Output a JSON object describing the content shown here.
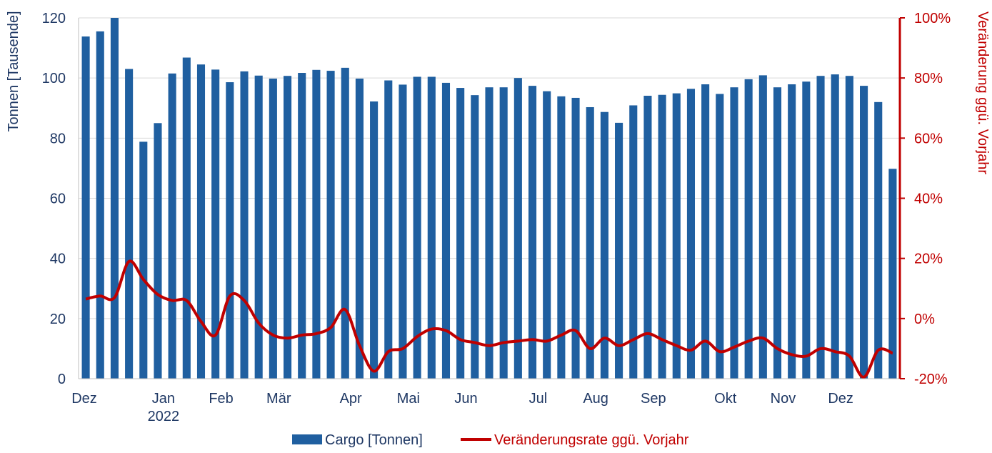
{
  "chart_data": {
    "type": "bar+line",
    "title": "",
    "y_left_label": "Tonnen [Tausende]",
    "y_right_label": "Veränderung ggü. Vorjahr",
    "y_left_ticks": [
      "0",
      "20",
      "40",
      "60",
      "80",
      "100",
      "120"
    ],
    "y_right_ticks": [
      "-20%",
      "0%",
      "20%",
      "40%",
      "60%",
      "80%",
      "100%"
    ],
    "ylim_left": [
      0,
      120
    ],
    "ylim_right": [
      -20,
      100
    ],
    "x_month_labels": [
      {
        "label": "Dez",
        "week": 0
      },
      {
        "label": "Jan",
        "week": 5
      },
      {
        "label": "2022",
        "week": 5,
        "second_line": true
      },
      {
        "label": "Feb",
        "week": 9
      },
      {
        "label": "Mär",
        "week": 13
      },
      {
        "label": "Apr",
        "week": 18
      },
      {
        "label": "Mai",
        "week": 22
      },
      {
        "label": "Jun",
        "week": 26
      },
      {
        "label": "Jul",
        "week": 31
      },
      {
        "label": "Aug",
        "week": 35
      },
      {
        "label": "Sep",
        "week": 39
      },
      {
        "label": "Okt",
        "week": 44
      },
      {
        "label": "Nov",
        "week": 48
      },
      {
        "label": "Dez",
        "week": 52
      }
    ],
    "grid": "horizontal",
    "legend_position": "bottom-center",
    "series": [
      {
        "name": "Cargo [Tonnen]",
        "type": "bar",
        "axis": "left",
        "color": "#1F5FA0",
        "values": [
          113.8,
          115.5,
          120.0,
          103.0,
          78.8,
          85.0,
          101.5,
          106.8,
          104.5,
          102.8,
          98.6,
          102.2,
          100.8,
          99.8,
          100.7,
          101.7,
          102.7,
          102.4,
          103.4,
          99.8,
          92.2,
          99.2,
          97.8,
          100.4,
          100.4,
          98.4,
          96.7,
          94.3,
          96.9,
          96.9,
          100.0,
          97.4,
          95.6,
          93.9,
          93.4,
          90.3,
          88.7,
          85.1,
          90.9,
          94.1,
          94.4,
          94.9,
          96.4,
          97.9,
          94.7,
          96.9,
          99.6,
          100.9,
          96.9,
          97.9,
          98.8,
          100.7,
          101.2,
          100.7,
          97.4,
          92.0,
          69.8
        ]
      },
      {
        "name": "Veränderungsrate ggü. Vorjahr",
        "type": "line",
        "axis": "right",
        "color": "#C00000",
        "values": [
          6.5,
          7.5,
          7.0,
          19.0,
          13.0,
          8.0,
          6.0,
          6.0,
          -1.0,
          -5.5,
          7.5,
          6.0,
          -1.5,
          -5.5,
          -6.5,
          -5.5,
          -5.0,
          -3.0,
          3.0,
          -9.0,
          -17.5,
          -11.0,
          -10.0,
          -6.0,
          -3.5,
          -4.0,
          -7.0,
          -8.0,
          -9.0,
          -8.0,
          -7.5,
          -7.0,
          -7.5,
          -5.5,
          -4.0,
          -10.0,
          -6.5,
          -9.0,
          -7.0,
          -5.0,
          -7.0,
          -9.0,
          -10.5,
          -7.5,
          -11.0,
          -9.5,
          -7.5,
          -6.5,
          -10.0,
          -12.0,
          -12.5,
          -10.0,
          -11.0,
          -12.5,
          -19.5,
          -10.5,
          -11.5
        ]
      }
    ]
  }
}
